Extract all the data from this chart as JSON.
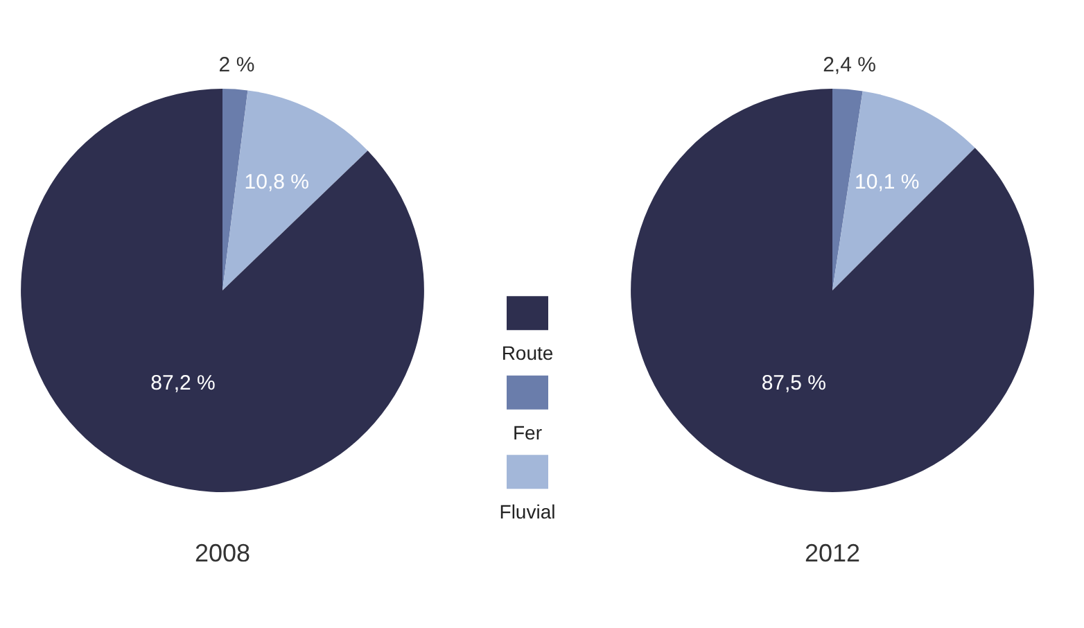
{
  "chart_data": {
    "type": "pie",
    "categories": [
      "Route",
      "Fer",
      "Fluvial"
    ],
    "colors": [
      "#2e2f4f",
      "#6a7dab",
      "#a3b7d9"
    ],
    "legend": "center",
    "series": [
      {
        "name": "2008",
        "values": [
          87.2,
          2,
          10.8
        ],
        "value_labels": [
          "87,2 %",
          "2 %",
          "10,8 %"
        ]
      },
      {
        "name": "2012",
        "values": [
          87.5,
          2.4,
          10.1
        ],
        "value_labels": [
          "87,5 %",
          "2,4 %",
          "10,1 %"
        ]
      }
    ]
  }
}
